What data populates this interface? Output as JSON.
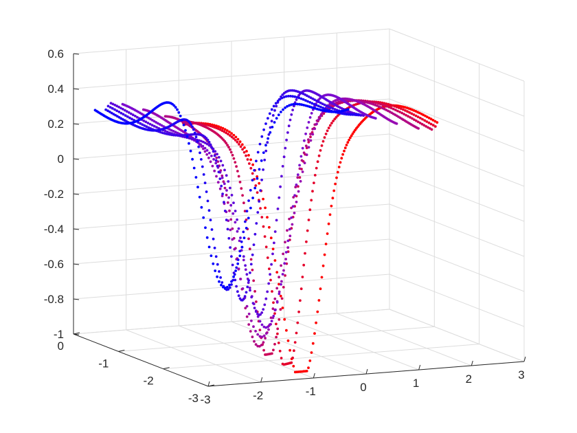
{
  "chart_data": {
    "type": "scatter",
    "subtype": "3d-scatter",
    "title": "",
    "xlabel": "",
    "ylabel": "",
    "zlabel": "",
    "grid": true,
    "box": false,
    "legend": "none",
    "colormap": {
      "start": "#ff0000",
      "mid": "#8a0cc8",
      "end": "#0000ff"
    },
    "x_axis": {
      "lim": [
        -3,
        3
      ],
      "ticks": [
        "-3",
        "-2",
        "-1",
        "0",
        "1",
        "2",
        "3"
      ]
    },
    "y_axis": {
      "lim": [
        -3,
        0
      ],
      "ticks": [
        "-3",
        "-2",
        "-1",
        "0"
      ]
    },
    "z_axis": {
      "lim": [
        -1,
        0.6
      ],
      "ticks": [
        "-1",
        "-0.8",
        "-0.6",
        "-0.4",
        "-0.2",
        "0",
        "0.2",
        "0.4",
        "0.6"
      ]
    },
    "series_count": 10,
    "surface": {
      "description": "dotted curves z = 0.35 - A*exp(-((x - c)/w)^2), c shifting with series",
      "x_range": [
        -3,
        1.8
      ],
      "y_range": [
        -3,
        0
      ],
      "z_min": -0.97,
      "z_max": 0.55
    }
  }
}
